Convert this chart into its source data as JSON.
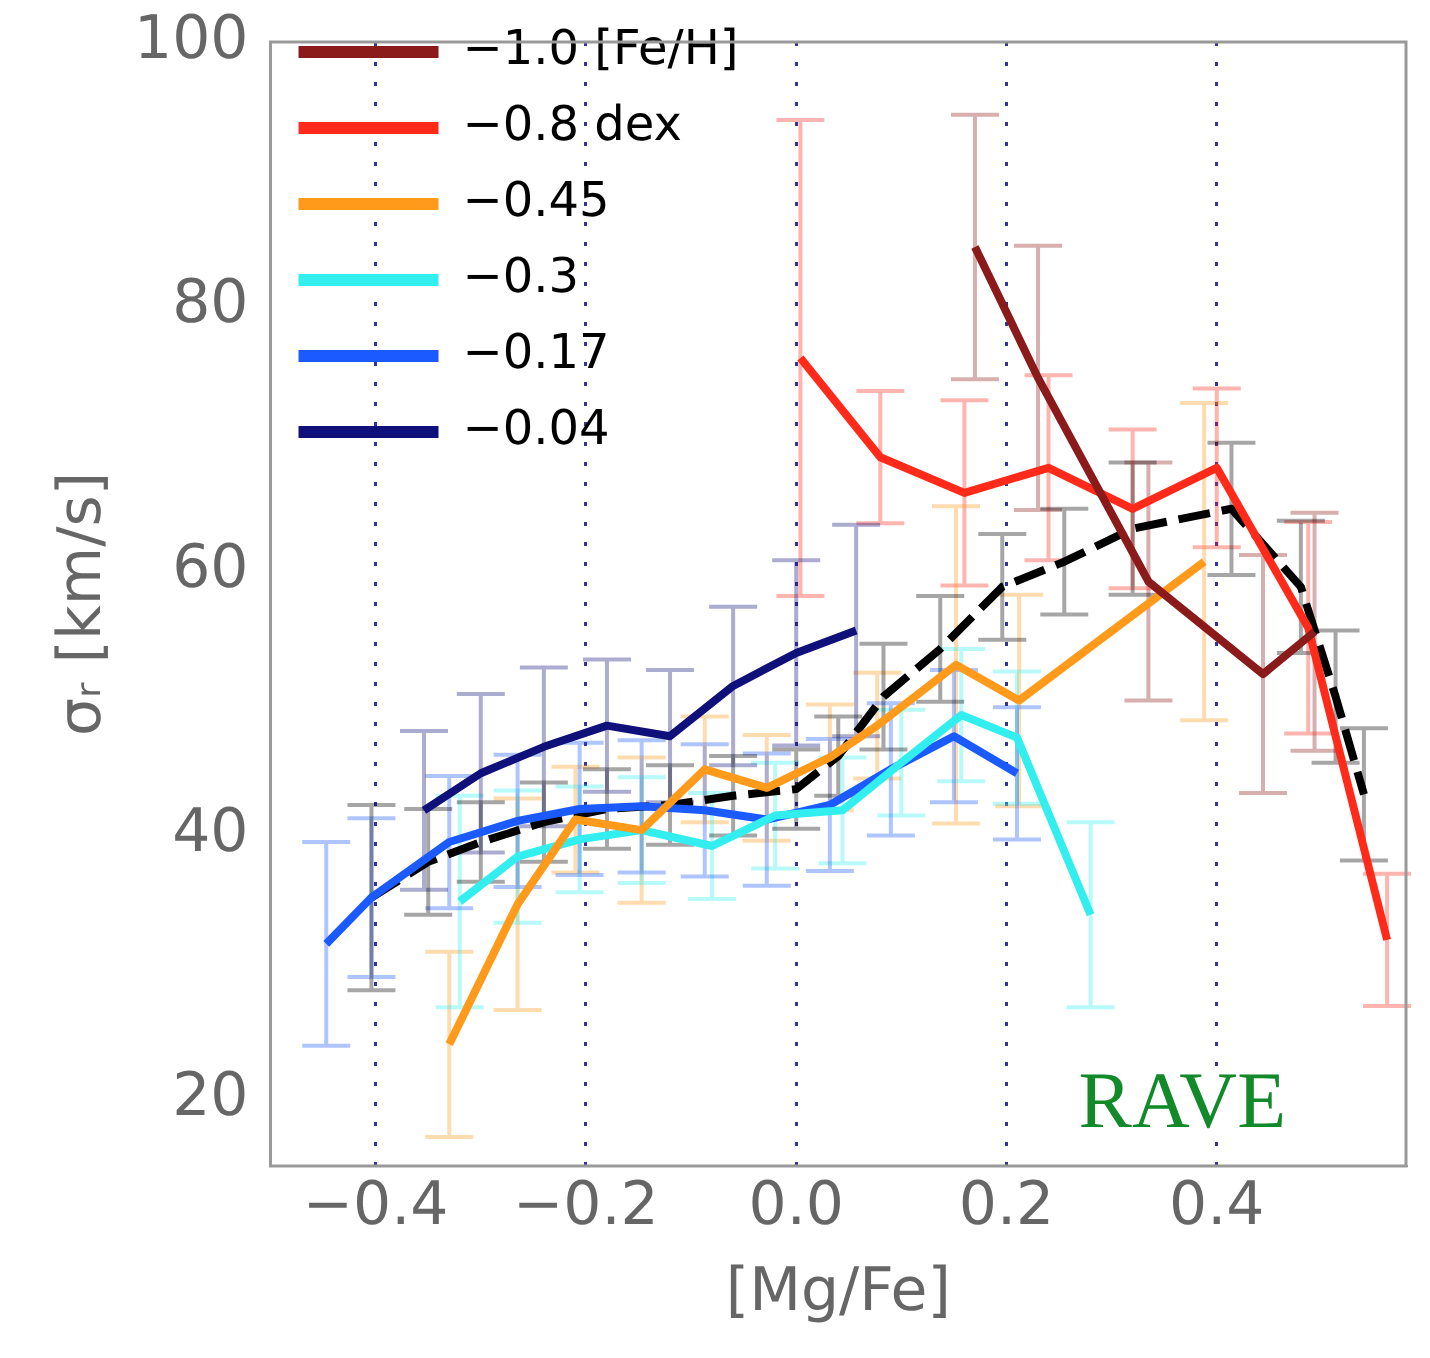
{
  "chart_data": {
    "type": "line",
    "xlabel": "[Mg/Fe]",
    "ylabel": "σᵣ [km/s]",
    "xlim": [
      -0.5,
      0.58
    ],
    "ylim": [
      15,
      100
    ],
    "xticks": [
      {
        "value": -0.4,
        "label": "−0.4"
      },
      {
        "value": -0.2,
        "label": "−0.2"
      },
      {
        "value": 0,
        "label": "0.0"
      },
      {
        "value": 0.2,
        "label": "0.2"
      },
      {
        "value": 0.4,
        "label": "0.4"
      }
    ],
    "yticks": [
      20,
      40,
      60,
      80,
      100
    ],
    "grid": "x",
    "legend": "top left",
    "marker": "none",
    "annotations": [
      "RAVE"
    ],
    "series": [
      {
        "name": "−1.0 [Fe/H]",
        "color": "#8b1a1a",
        "x": [
          0.17,
          0.23,
          0.335,
          0.444,
          0.493
        ],
        "values": [
          84.5,
          74.6,
          59.2,
          52.2,
          55.4
        ],
        "errors": [
          10,
          10,
          9,
          9,
          9
        ]
      },
      {
        "name": "−0.8 dex",
        "color": "#ff2a1a",
        "x": [
          0.004,
          0.08,
          0.16,
          0.24,
          0.32,
          0.4,
          0.487,
          0.562
        ],
        "values": [
          76.1,
          68.6,
          65.9,
          67.8,
          64.7,
          67.8,
          55.7,
          32.1
        ],
        "errors": [
          18,
          5,
          7,
          7,
          6,
          6,
          8,
          5
        ]
      },
      {
        "name": "−0.45",
        "color": "#ff9a1a",
        "x": [
          -0.33,
          -0.265,
          -0.21,
          -0.147,
          -0.087,
          -0.028,
          0.032,
          0.077,
          0.152,
          0.212,
          0.388
        ],
        "values": [
          24.2,
          34.8,
          41.2,
          40.4,
          45.0,
          43.6,
          45.9,
          48.3,
          52.9,
          50.2,
          60.7
        ],
        "errors": [
          7,
          8,
          4,
          5.5,
          4,
          4,
          4,
          4,
          12,
          8,
          12
        ]
      },
      {
        "name": "−0.3",
        "color": "#33eeee",
        "x": [
          -0.32,
          -0.265,
          -0.206,
          -0.147,
          -0.08,
          -0.02,
          0.044,
          0.1,
          0.157,
          0.21,
          0.28
        ],
        "values": [
          35,
          38.4,
          39.7,
          40.4,
          39.2,
          41.5,
          41.9,
          45.5,
          49.1,
          47.4,
          34.0
        ],
        "errors": [
          8,
          5,
          4,
          4,
          4,
          4,
          4,
          4,
          5,
          5,
          7
        ]
      },
      {
        "name": "−0.17",
        "color": "#1a5aff",
        "x": [
          -0.447,
          -0.404,
          -0.33,
          -0.265,
          -0.206,
          -0.147,
          -0.087,
          -0.028,
          0.032,
          0.09,
          0.15,
          0.21
        ],
        "values": [
          31.8,
          35.3,
          39.5,
          41.1,
          42.0,
          42.2,
          41.9,
          41.2,
          42.3,
          45.0,
          47.5,
          44.7
        ],
        "errors": [
          7.7,
          6,
          5,
          5,
          5,
          5,
          5,
          5,
          5,
          5,
          5,
          5
        ]
      },
      {
        "name": "−0.04",
        "color": "#10107a",
        "x": [
          -0.354,
          -0.3,
          -0.24,
          -0.18,
          -0.12,
          -0.06,
          0.0,
          0.057
        ],
        "values": [
          41.9,
          44.7,
          46.7,
          48.3,
          47.5,
          51.3,
          53.8,
          55.5
        ],
        "errors": [
          6,
          6,
          6,
          5,
          5,
          6,
          7,
          8
        ]
      },
      {
        "color": "#000000",
        "line_style": "dashed",
        "x": [
          -0.404,
          -0.35,
          -0.3,
          -0.24,
          -0.18,
          -0.12,
          -0.06,
          0.0,
          0.04,
          0.083,
          0.137,
          0.196,
          0.255,
          0.32,
          0.414,
          0.48,
          0.513,
          0.54
        ],
        "values": [
          35.3,
          38,
          39.5,
          41,
          42,
          42.3,
          43,
          43.5,
          46,
          50.5,
          54.1,
          58.8,
          60.7,
          63.2,
          64.7,
          58.8,
          50.5,
          43.1
        ],
        "errors": [
          7,
          4,
          3,
          3,
          3,
          3,
          3,
          3,
          3,
          4,
          4,
          4,
          4,
          5,
          5,
          5,
          5,
          5
        ]
      }
    ]
  }
}
